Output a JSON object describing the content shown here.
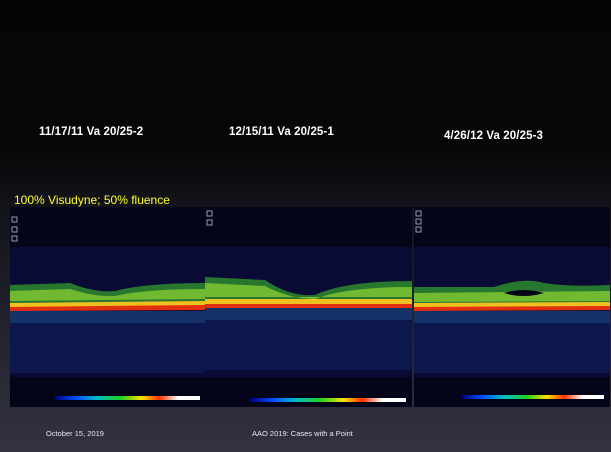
{
  "slide": {
    "scan_dates": [
      {
        "label": "11/17/11 Va  20/25-2"
      },
      {
        "label": "12/15/11 Va  20/25-1"
      },
      {
        "label": "4/26/12 Va  20/25-3"
      }
    ],
    "treatment_note": "100% Visudyne; 50% fluence",
    "footer": {
      "date": "October 15, 2019",
      "title": "AAO 2019: Cases with a Point"
    }
  }
}
